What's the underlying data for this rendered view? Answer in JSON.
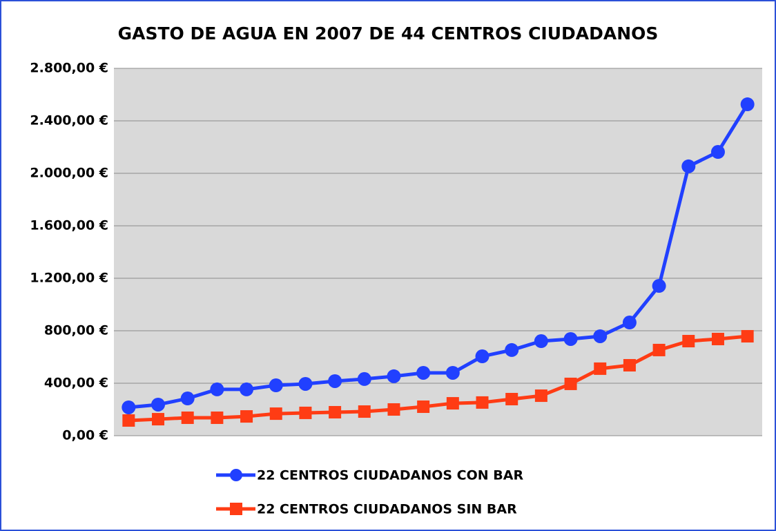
{
  "chart_data": {
    "type": "line",
    "title": "GASTO DE AGUA EN 2007 DE 44 CENTROS CIUDADANOS",
    "categories": [
      null,
      null,
      null,
      null,
      null,
      null,
      null,
      null,
      null,
      null,
      null,
      null,
      null,
      null,
      null,
      null,
      null,
      null,
      null,
      null,
      null,
      null
    ],
    "series": [
      {
        "name": "22 CENTROS CIUDADANOS CON BAR",
        "color": "#2140ff",
        "marker": "circle",
        "values": [
          216,
          237,
          284,
          353,
          353,
          384,
          395,
          416,
          432,
          453,
          479,
          479,
          605,
          653,
          721,
          737,
          758,
          863,
          1142,
          2053,
          2163,
          2526
        ]
      },
      {
        "name": "22 CENTROS CIUDADANOS SIN BAR",
        "color": "#ff3c14",
        "marker": "square",
        "values": [
          116,
          126,
          137,
          137,
          147,
          168,
          174,
          179,
          184,
          200,
          221,
          247,
          253,
          279,
          305,
          395,
          511,
          537,
          653,
          721,
          737,
          758
        ]
      }
    ],
    "ylim": [
      0,
      2800
    ],
    "yticks": [
      {
        "value": 0,
        "label": "0,00 €"
      },
      {
        "value": 400,
        "label": "400,00 €"
      },
      {
        "value": 800,
        "label": "800,00 €"
      },
      {
        "value": 1200,
        "label": "1.200,00 €"
      },
      {
        "value": 1600,
        "label": "1.600,00 €"
      },
      {
        "value": 2000,
        "label": "2.000,00 €"
      },
      {
        "value": 2400,
        "label": "2.400,00 €"
      },
      {
        "value": 2800,
        "label": "2.800,00 €"
      }
    ],
    "grid": true
  }
}
